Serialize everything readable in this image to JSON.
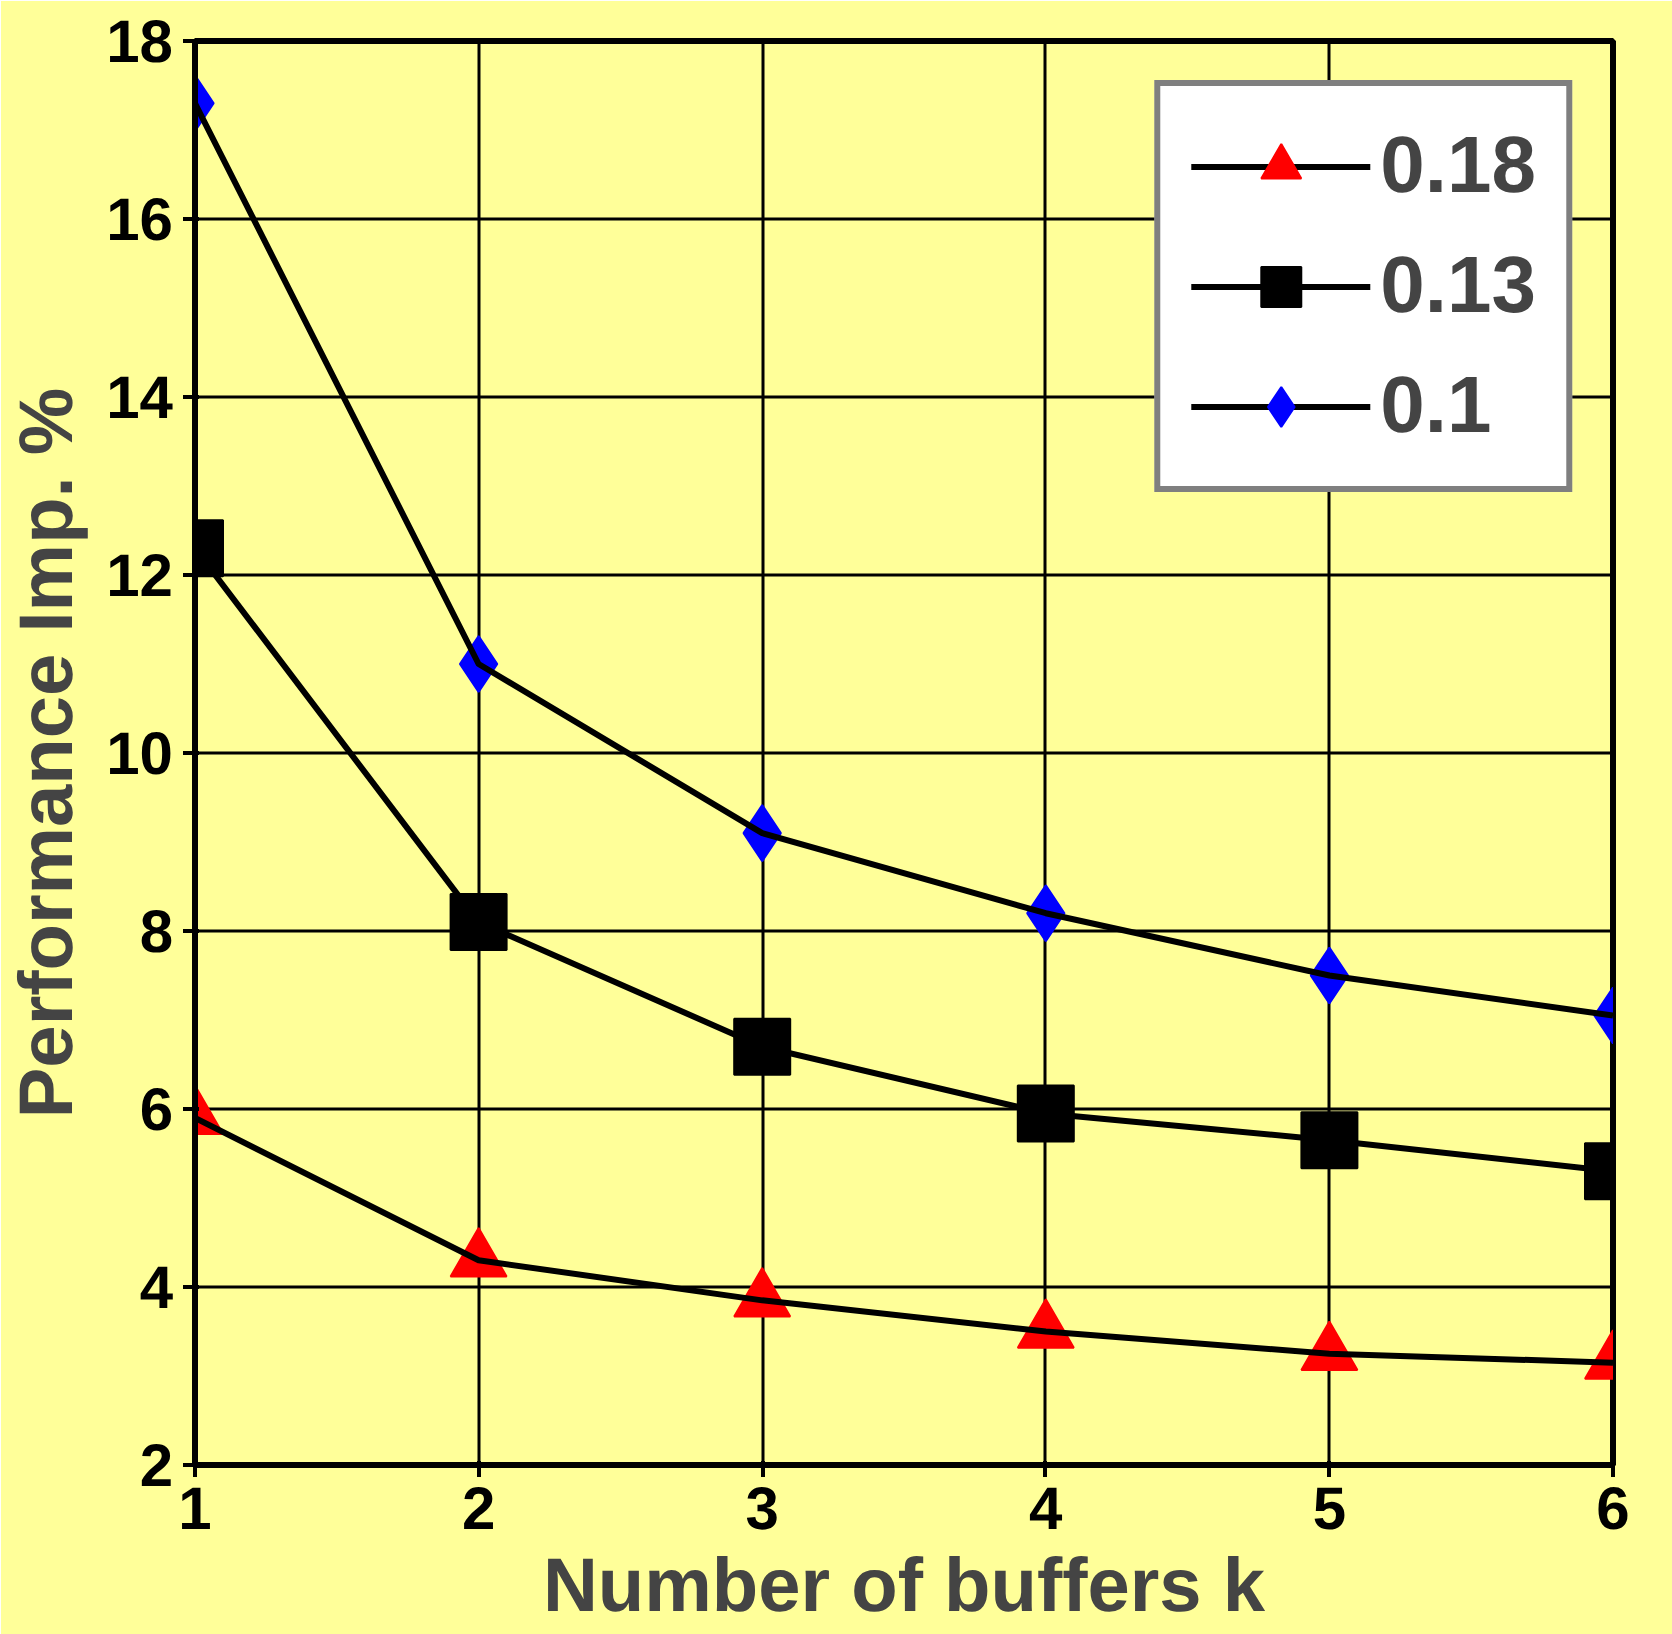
{
  "chart_data": {
    "type": "line",
    "xlabel": "Number of buffers k",
    "ylabel": "Performance Imp. %",
    "x": [
      1,
      2,
      3,
      4,
      5,
      6
    ],
    "series": [
      {
        "name": "0.18",
        "color": "#ff0000",
        "marker": "triangle",
        "values": [
          5.9,
          4.3,
          3.85,
          3.5,
          3.25,
          3.15
        ]
      },
      {
        "name": "0.13",
        "color": "#000000",
        "marker": "square",
        "values": [
          12.3,
          8.1,
          6.7,
          5.95,
          5.65,
          5.3
        ]
      },
      {
        "name": "0.1",
        "color": "#0000ff",
        "marker": "diamond",
        "values": [
          17.3,
          11.0,
          9.1,
          8.2,
          7.5,
          7.05
        ]
      }
    ],
    "xlim": [
      1,
      6
    ],
    "xticks": [
      1,
      2,
      3,
      4,
      5,
      6
    ],
    "ylim": [
      2,
      18
    ],
    "yticks": [
      2,
      4,
      6,
      8,
      10,
      12,
      14,
      16,
      18
    ],
    "grid": true,
    "legend": "top right",
    "line_style": "solid"
  }
}
